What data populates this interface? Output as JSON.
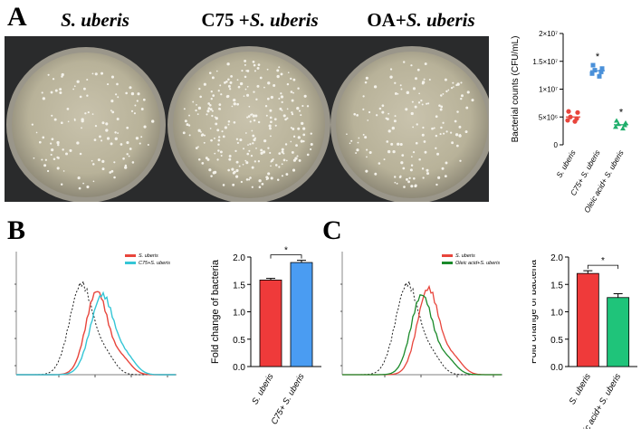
{
  "panelA": {
    "letter": "A",
    "plates": [
      {
        "prefix": "",
        "italic": "S. uberis"
      },
      {
        "prefix": "C75 +",
        "italic": "S. uberis"
      },
      {
        "prefix": "OA+",
        "italic": "S. uberis"
      }
    ]
  },
  "panelB": {
    "letter": "B"
  },
  "panelC": {
    "letter": "C"
  },
  "chart_data": [
    {
      "id": "A-scatter",
      "type": "scatter",
      "ylabel": "Bacterial counts (CFU/mL)",
      "ylim": [
        0,
        20000000
      ],
      "yticks": [
        "0",
        "5×10⁶",
        "1×10⁷",
        "1.5×10⁷",
        "2×10⁷"
      ],
      "ytick_values": [
        0,
        5000000,
        10000000,
        15000000,
        20000000
      ],
      "categories": [
        "S. uberis",
        "C75+ S. uberis",
        "Oleic acid+ S. uberis"
      ],
      "colors": [
        "#e8453c",
        "#4a90d9",
        "#1fae6b"
      ],
      "points": [
        [
          6000000,
          5800000,
          5000000,
          4700000,
          4400000,
          4200000
        ],
        [
          14300000,
          13700000,
          13400000,
          13100000,
          12800000,
          12300000
        ],
        [
          4300000,
          3900000,
          3700000,
          3500000,
          3200000,
          2900000
        ]
      ],
      "means": [
        5000000,
        13300000,
        3600000
      ],
      "significance": [
        "",
        "*",
        "*"
      ]
    },
    {
      "id": "B-histogram",
      "type": "line",
      "legend": [
        "S. uberis",
        "C75+S. uberis"
      ],
      "colors": [
        "#e8453c",
        "#35c6d6",
        "#222222"
      ]
    },
    {
      "id": "B-bar",
      "type": "bar",
      "ylabel": "Fold change of bacteria",
      "categories": [
        "S. uberis",
        "C75+ S. uberis"
      ],
      "values": [
        1.58,
        1.9
      ],
      "errors": [
        0.03,
        0.04
      ],
      "colors": [
        "#ef3a3a",
        "#4a9cf2"
      ],
      "ylim": [
        0,
        2.0
      ],
      "yticks": [
        "0.0",
        "0.5",
        "1.0",
        "1.5",
        "2.0"
      ],
      "ytick_values": [
        0,
        0.5,
        1.0,
        1.5,
        2.0
      ],
      "significance": "*"
    },
    {
      "id": "C-histogram",
      "type": "line",
      "legend": [
        "S. uberis",
        "Oleic acid+S. uberis"
      ],
      "colors": [
        "#e8453c",
        "#1a8a2a",
        "#222222"
      ]
    },
    {
      "id": "C-bar",
      "type": "bar",
      "ylabel": "Fold change of bacteria",
      "categories": [
        "S. uberis",
        "Oleic acid+ S. uberis"
      ],
      "values": [
        1.7,
        1.26
      ],
      "errors": [
        0.05,
        0.07
      ],
      "colors": [
        "#ef3a3a",
        "#1fc47a"
      ],
      "ylim": [
        0,
        2.0
      ],
      "yticks": [
        "0.0",
        "0.5",
        "1.0",
        "1.5",
        "2.0"
      ],
      "ytick_values": [
        0,
        0.5,
        1.0,
        1.5,
        2.0
      ],
      "significance": "*"
    }
  ]
}
